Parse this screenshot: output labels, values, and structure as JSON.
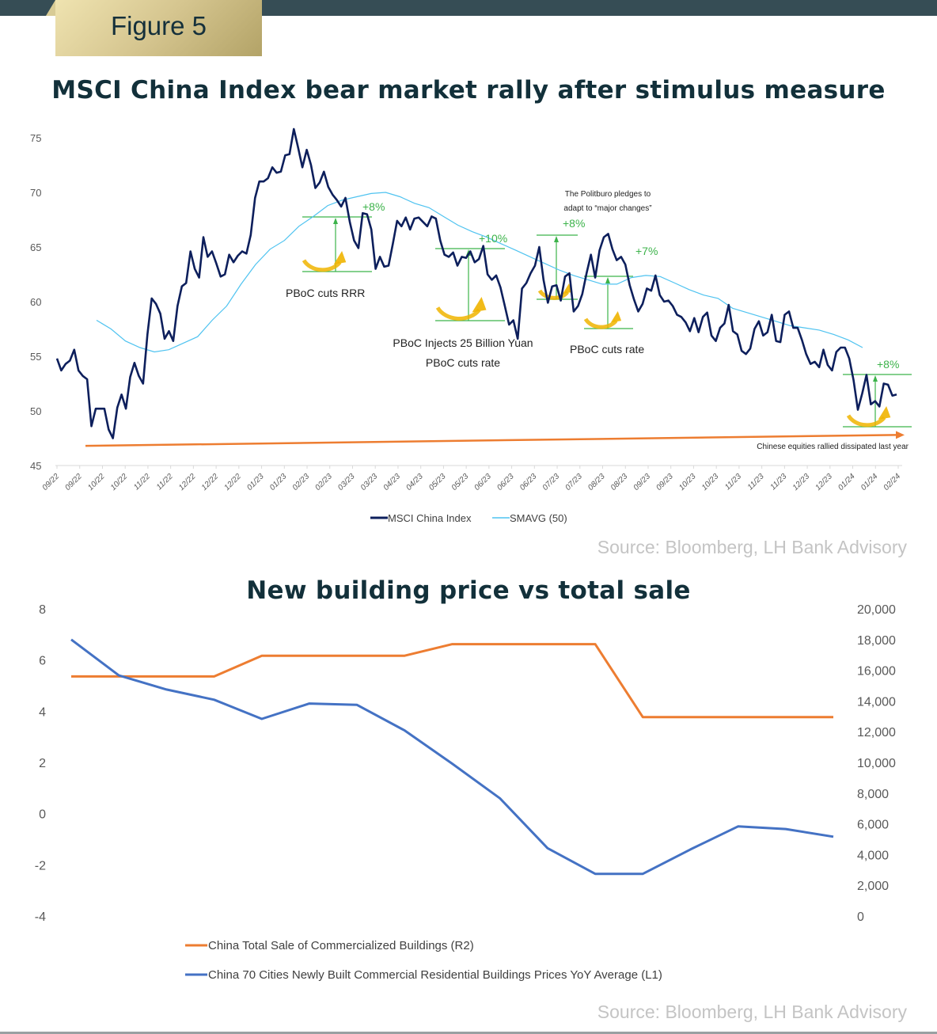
{
  "header": {
    "figure_label": "Figure 5",
    "source_1": "Source: Bloomberg, LH Bank Advisory",
    "source_2": "Source: Bloomberg, LH Bank Advisory"
  },
  "colors": {
    "header_bar": "#364d55",
    "title": "#12303a",
    "msci": "#0d1f5c",
    "smavg": "#4fc3f0",
    "annotation_green": "#3cb34a",
    "arrow_gold": "#f0b400",
    "trend_orange": "#ed7d31",
    "sale_orange": "#ed7d31",
    "price_blue": "#4472c4"
  },
  "chart_data": [
    {
      "type": "line",
      "title": "MSCI China Index bear market rally after stimulus measure",
      "xlabel": "",
      "ylabel": "",
      "ylim": [
        45,
        75
      ],
      "yticks": [
        45,
        50,
        55,
        60,
        65,
        70,
        75
      ],
      "x_tick_labels": [
        "09/22",
        "09/22",
        "10/22",
        "10/22",
        "11/22",
        "11/22",
        "12/22",
        "12/22",
        "12/22",
        "01/23",
        "01/23",
        "02/23",
        "02/23",
        "03/23",
        "03/23",
        "04/23",
        "04/23",
        "05/23",
        "05/23",
        "06/23",
        "06/23",
        "06/23",
        "07/23",
        "07/23",
        "08/23",
        "08/23",
        "09/23",
        "09/23",
        "10/23",
        "10/23",
        "11/23",
        "11/23",
        "11/23",
        "12/23",
        "12/23",
        "01/24",
        "01/24",
        "02/24"
      ],
      "grid": false,
      "legend_position": "bottom",
      "series": [
        {
          "name": "MSCI China Index",
          "values": [
            54.8,
            53.7,
            54.3,
            54.6,
            55.6,
            53.7,
            53.2,
            52.9,
            48.6,
            50.2,
            50.2,
            50.2,
            48.3,
            47.5,
            50.3,
            51.5,
            50.2,
            53.1,
            54.4,
            53.2,
            52.5,
            57.0,
            60.3,
            59.8,
            58.9,
            56.6,
            57.3,
            56.4,
            59.6,
            61.4,
            61.7,
            64.6,
            63.0,
            62.2,
            65.9,
            64.1,
            64.6,
            63.5,
            62.3,
            62.5,
            64.3,
            63.6,
            64.2,
            64.6,
            64.4,
            66.1,
            69.5,
            71.0,
            71.0,
            71.3,
            72.3,
            71.8,
            71.9,
            73.4,
            73.5,
            75.8,
            74.1,
            72.3,
            73.9,
            72.5,
            70.4,
            70.9,
            71.9,
            70.5,
            69.8,
            69.3,
            68.7,
            69.5,
            67.3,
            65.6,
            64.9,
            68.1,
            68.0,
            66.6,
            63.0,
            64.1,
            63.2,
            63.3,
            65.3,
            67.4,
            66.9,
            67.7,
            66.6,
            67.6,
            67.7,
            67.3,
            66.9,
            67.8,
            67.6,
            65.6,
            64.3,
            64.1,
            64.5,
            63.3,
            64.1,
            64.0,
            64.6,
            63.6,
            63.9,
            65.1,
            62.5,
            62.0,
            62.4,
            61.3,
            59.6,
            57.9,
            58.3,
            56.6,
            61.2,
            61.7,
            62.6,
            63.3,
            65.0,
            62.0,
            59.9,
            61.4,
            61.5,
            60.1,
            62.3,
            62.6,
            59.1,
            59.6,
            60.7,
            62.6,
            64.3,
            62.2,
            64.7,
            65.9,
            66.2,
            64.8,
            63.8,
            64.1,
            63.4,
            61.5,
            60.2,
            59.1,
            59.8,
            61.2,
            61.0,
            62.4,
            60.6,
            60.0,
            60.1,
            59.6,
            58.8,
            58.6,
            58.1,
            57.3,
            58.5,
            57.2,
            58.6,
            59.0,
            56.9,
            56.4,
            57.6,
            58.0,
            59.7,
            57.3,
            57.0,
            55.5,
            55.2,
            55.7,
            57.5,
            58.2,
            56.9,
            57.2,
            58.8,
            56.4,
            56.3,
            58.8,
            59.1,
            57.6,
            57.6,
            56.5,
            55.2,
            54.3,
            54.5,
            54.0,
            55.6,
            54.2,
            53.7,
            55.4,
            55.8,
            55.8,
            54.8,
            52.8,
            50.1,
            51.6,
            53.3,
            50.6,
            50.9,
            50.4,
            52.5,
            52.4,
            51.4,
            51.5
          ]
        },
        {
          "name": "SMAVG (50)",
          "values": [
            58.3,
            57.5,
            56.4,
            55.8,
            55.4,
            55.6,
            56.2,
            56.8,
            58.3,
            59.6,
            61.6,
            63.4,
            64.8,
            65.6,
            66.9,
            67.8,
            68.8,
            69.3,
            69.6,
            69.9,
            70.0,
            69.6,
            69.0,
            68.6,
            67.8,
            67.0,
            66.4,
            65.9,
            65.3,
            64.7,
            64.1,
            63.5,
            62.9,
            62.4,
            62.0,
            61.6,
            61.6,
            62.2,
            62.4,
            62.3,
            61.7,
            61.1,
            60.6,
            60.3,
            59.4,
            59.0,
            58.6,
            58.2,
            57.8,
            57.6,
            57.4,
            57.0,
            56.5,
            55.8
          ]
        },
        {
          "name": "Chinese equities rallied dissipated last year (trend)",
          "values": [
            46.8,
            47.8
          ]
        }
      ],
      "annotations": [
        {
          "text": "PBoC cuts RRR",
          "change": "+8%"
        },
        {
          "text_lines": [
            "PBoC Injects 25 Billion Yuan",
            "PBoC cuts rate"
          ],
          "change": "+10%"
        },
        {
          "text_lines": [
            "The Politburo pledges to",
            "adapt to “major changes”"
          ],
          "change": "+8%"
        },
        {
          "text": "PBoC cuts rate",
          "change": "+7%"
        },
        {
          "text": "Chinese equities rallied dissipated last year",
          "change": "+8%"
        }
      ]
    },
    {
      "type": "line",
      "title": "New building price vs total sale",
      "xlabel": "",
      "ylabel": "",
      "left_axis": {
        "ylim": [
          -4,
          8
        ],
        "ticks": [
          "8",
          "6",
          "4",
          "2",
          "0",
          "-2",
          "-4"
        ]
      },
      "right_axis": {
        "ylim": [
          0,
          20000
        ],
        "ticks": [
          "20,000",
          "18,000",
          "16,000",
          "14,000",
          "12,000",
          "10,000",
          "8,000",
          "6,000",
          "4,000",
          "2,000",
          "0"
        ]
      },
      "grid": false,
      "legend_position": "bottom",
      "series": [
        {
          "name": "China Total Sale of Commercialized Buildings  (R2)",
          "axis": "right",
          "values": [
            15600,
            15600,
            15600,
            15600,
            16950,
            16950,
            16950,
            16950,
            17700,
            17700,
            17700,
            17700,
            12950,
            12950,
            12950,
            12950,
            12950
          ]
        },
        {
          "name": "China 70 Cities Newly Built Commercial Residential Buildings Prices YoY Average  (L1)",
          "axis": "left",
          "values": [
            6.8,
            5.4,
            4.85,
            4.45,
            3.7,
            4.3,
            4.25,
            3.25,
            1.95,
            0.6,
            -1.35,
            -2.35,
            -2.35,
            -1.4,
            -0.5,
            -0.6,
            -0.9
          ]
        }
      ]
    }
  ]
}
